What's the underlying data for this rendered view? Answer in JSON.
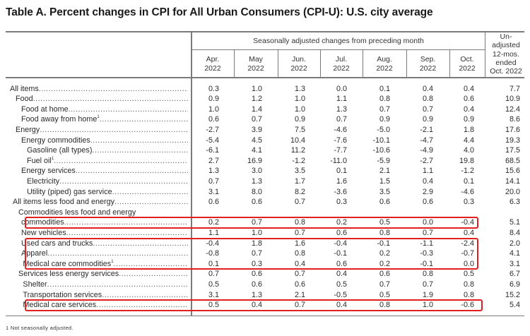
{
  "title": "Table A. Percent changes in CPI for All Urban Consumers (CPI-U): U.S. city average",
  "header": {
    "group_label": "Seasonally adjusted changes from preceding month",
    "months": [
      {
        "line1": "Apr.",
        "line2": "2022"
      },
      {
        "line1": "May",
        "line2": "2022"
      },
      {
        "line1": "Jun.",
        "line2": "2022"
      },
      {
        "line1": "Jul.",
        "line2": "2022"
      },
      {
        "line1": "Aug.",
        "line2": "2022"
      },
      {
        "line1": "Sep.",
        "line2": "2022"
      },
      {
        "line1": "Oct.",
        "line2": "2022"
      }
    ],
    "unadjusted": [
      "Un-",
      "adjusted",
      "12-mos.",
      "ended",
      "Oct. 2022"
    ]
  },
  "rows": [
    {
      "label": "All items",
      "indent": 0,
      "values": [
        "0.3",
        "1.0",
        "1.3",
        "0.0",
        "0.1",
        "0.4",
        "0.4",
        "7.7"
      ]
    },
    {
      "label": "Food",
      "indent": 1,
      "values": [
        "0.9",
        "1.2",
        "1.0",
        "1.1",
        "0.8",
        "0.8",
        "0.6",
        "10.9"
      ]
    },
    {
      "label": "Food at home",
      "indent": 2,
      "values": [
        "1.0",
        "1.4",
        "1.0",
        "1.3",
        "0.7",
        "0.7",
        "0.4",
        "12.4"
      ]
    },
    {
      "label": "Food away from home",
      "sup": "1",
      "indent": 2,
      "values": [
        "0.6",
        "0.7",
        "0.9",
        "0.7",
        "0.9",
        "0.9",
        "0.9",
        "8.6"
      ]
    },
    {
      "label": "Energy",
      "indent": 1,
      "values": [
        "-2.7",
        "3.9",
        "7.5",
        "-4.6",
        "-5.0",
        "-2.1",
        "1.8",
        "17.6"
      ]
    },
    {
      "label": "Energy commodities",
      "indent": 2,
      "values": [
        "-5.4",
        "4.5",
        "10.4",
        "-7.6",
        "-10.1",
        "-4.7",
        "4.4",
        "19.3"
      ]
    },
    {
      "label": "Gasoline (all types)",
      "indent": 3,
      "values": [
        "-6.1",
        "4.1",
        "11.2",
        "-7.7",
        "-10.6",
        "-4.9",
        "4.0",
        "17.5"
      ]
    },
    {
      "label": "Fuel oil",
      "sup": "1",
      "indent": 3,
      "values": [
        "2.7",
        "16.9",
        "-1.2",
        "-11.0",
        "-5.9",
        "-2.7",
        "19.8",
        "68.5"
      ]
    },
    {
      "label": "Energy services",
      "indent": 2,
      "values": [
        "1.3",
        "3.0",
        "3.5",
        "0.1",
        "2.1",
        "1.1",
        "-1.2",
        "15.6"
      ]
    },
    {
      "label": "Electricity",
      "indent": 3,
      "values": [
        "0.7",
        "1.3",
        "1.7",
        "1.6",
        "1.5",
        "0.4",
        "0.1",
        "14.1"
      ]
    },
    {
      "label": "Utility (piped) gas service",
      "indent": 3,
      "values": [
        "3.1",
        "8.0",
        "8.2",
        "-3.6",
        "3.5",
        "2.9",
        "-4.6",
        "20.0"
      ]
    },
    {
      "label": "All items less food and energy",
      "indent": 0.5,
      "values": [
        "0.6",
        "0.6",
        "0.7",
        "0.3",
        "0.6",
        "0.6",
        "0.3",
        "6.3"
      ]
    },
    {
      "label": "Commodities less food and energy",
      "indent": 1.5,
      "nodots": true,
      "values": [
        "",
        "",
        "",
        "",
        "",
        "",
        "",
        ""
      ]
    },
    {
      "label": "commodities",
      "indent": 2,
      "values": [
        "0.2",
        "0.7",
        "0.8",
        "0.2",
        "0.5",
        "0.0",
        "-0.4",
        "5.1"
      ]
    },
    {
      "label": "New vehicles",
      "indent": 2,
      "values": [
        "1.1",
        "1.0",
        "0.7",
        "0.6",
        "0.8",
        "0.7",
        "0.4",
        "8.4"
      ]
    },
    {
      "label": "Used cars and trucks",
      "indent": 2,
      "values": [
        "-0.4",
        "1.8",
        "1.6",
        "-0.4",
        "-0.1",
        "-1.1",
        "-2.4",
        "2.0"
      ]
    },
    {
      "label": "Apparel",
      "indent": 2,
      "values": [
        "-0.8",
        "0.7",
        "0.8",
        "-0.1",
        "0.2",
        "-0.3",
        "-0.7",
        "4.1"
      ]
    },
    {
      "label": "Medical care commodities",
      "sup": "1",
      "indent": 2.3,
      "values": [
        "0.1",
        "0.3",
        "0.4",
        "0.6",
        "0.2",
        "-0.1",
        "0.0",
        "3.1"
      ]
    },
    {
      "label": "Services less energy services",
      "indent": 1.5,
      "values": [
        "0.7",
        "0.6",
        "0.7",
        "0.4",
        "0.6",
        "0.8",
        "0.5",
        "6.7"
      ]
    },
    {
      "label": "Shelter",
      "indent": 2.3,
      "values": [
        "0.5",
        "0.6",
        "0.6",
        "0.5",
        "0.7",
        "0.7",
        "0.8",
        "6.9"
      ]
    },
    {
      "label": "Transportation services",
      "indent": 2.3,
      "values": [
        "3.1",
        "1.3",
        "2.1",
        "-0.5",
        "0.5",
        "1.9",
        "0.8",
        "15.2"
      ]
    },
    {
      "label": "Medical care services",
      "indent": 2.3,
      "values": [
        "0.5",
        "0.4",
        "0.7",
        "0.4",
        "0.8",
        "1.0",
        "-0.6",
        "5.4"
      ]
    }
  ],
  "highlights": [
    {
      "name": "commodities-less-food-energy",
      "rows": [
        13
      ]
    },
    {
      "name": "used-cars-apparel-medical-commodities",
      "rows": [
        15,
        16,
        17
      ]
    },
    {
      "name": "medical-care-services",
      "rows": [
        21
      ]
    }
  ],
  "highlight_color": "#e02020",
  "footnote": "1 Not seasonally adjusted."
}
